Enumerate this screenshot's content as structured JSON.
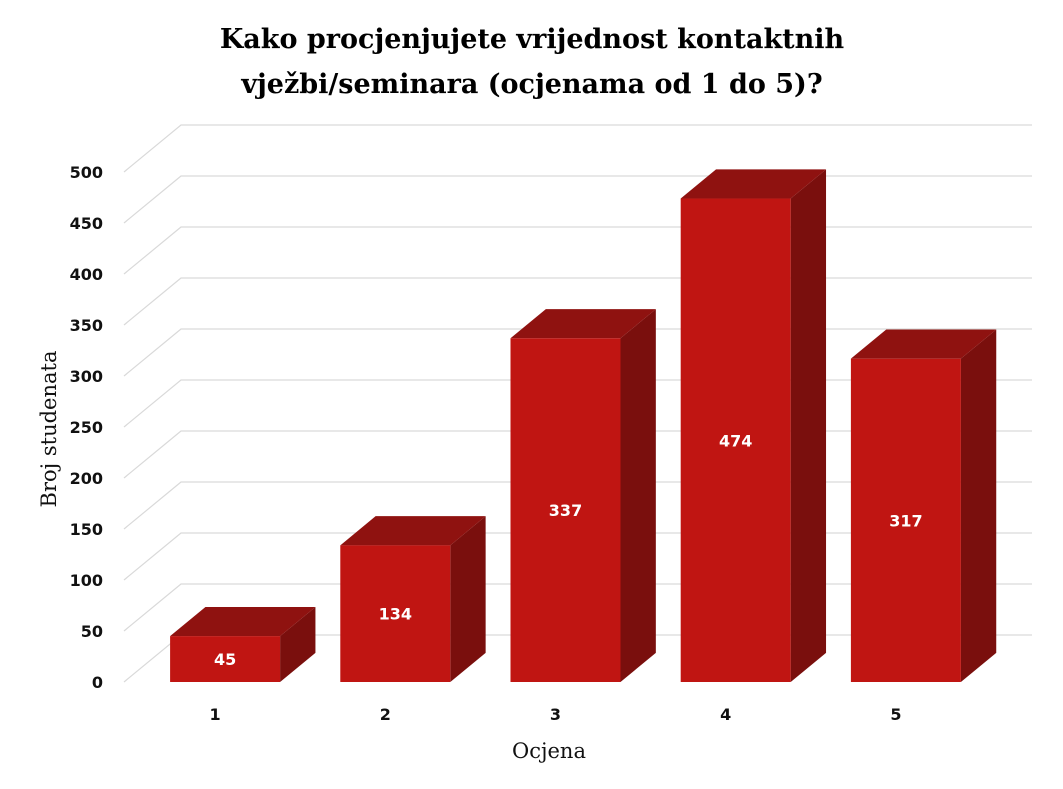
{
  "chart_data": {
    "type": "bar",
    "title": [
      "Kako procjenjujete vrijednost kontaktnih",
      "vježbi/seminara (ocjenama od 1 do 5)?"
    ],
    "xlabel": "Ocjena",
    "ylabel": "Broj studenata",
    "categories": [
      "1",
      "2",
      "3",
      "4",
      "5"
    ],
    "values": [
      45,
      134,
      337,
      474,
      317
    ],
    "value_labels": [
      "45",
      "134",
      "337",
      "474",
      "317"
    ],
    "ylim": [
      0,
      500
    ],
    "yticks": [
      0,
      50,
      100,
      150,
      200,
      250,
      300,
      350,
      400,
      450,
      500
    ],
    "ytick_labels": [
      "0",
      "50",
      "100",
      "150",
      "200",
      "250",
      "300",
      "350",
      "400",
      "450",
      "500"
    ],
    "grid": true,
    "style": "3d-column",
    "colors": {
      "front": "#c01512",
      "top": "#8f1210",
      "side": "#7a0f0d",
      "grid": "#d9d9d9"
    }
  }
}
